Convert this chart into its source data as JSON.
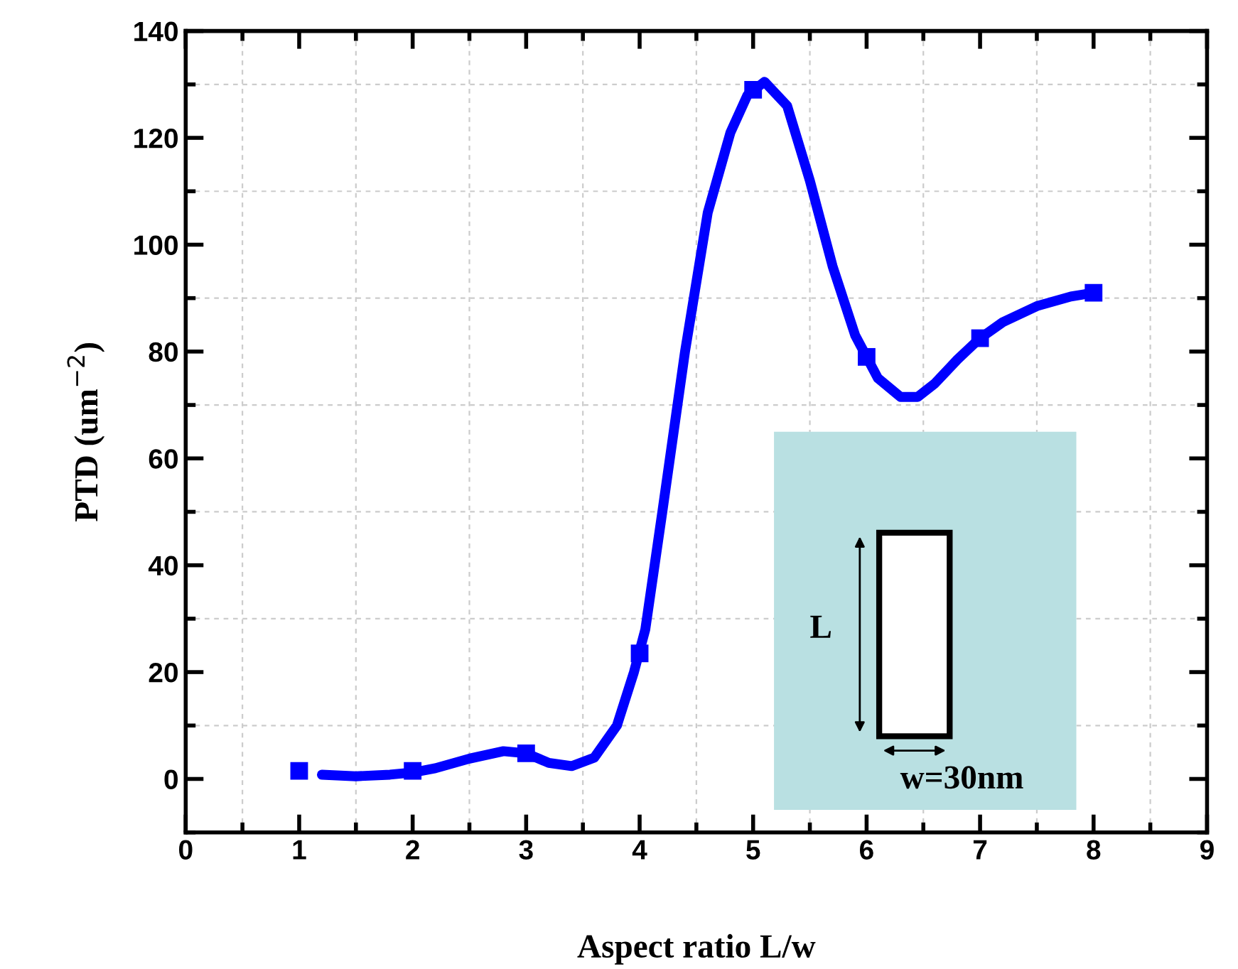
{
  "chart_data": {
    "type": "line",
    "xlabel": "Aspect ratio L/w",
    "ylabel": "PTD (um$^{−2}$)",
    "series": [
      {
        "color": "#0000ff",
        "marker": "none",
        "line_style": "solid",
        "x": [
          1.2,
          1.5,
          1.8,
          2.0,
          2.2,
          2.5,
          2.8,
          3.0,
          3.2,
          3.4,
          3.6,
          3.8,
          3.95,
          4.05,
          4.2,
          4.4,
          4.6,
          4.8,
          4.95,
          5.1,
          5.3,
          5.5,
          5.7,
          5.9,
          6.0,
          6.1,
          6.3,
          6.45,
          6.6,
          6.8,
          7.0,
          7.2,
          7.5,
          7.8,
          8.0
        ],
        "values": [
          0.8,
          0.5,
          0.8,
          1.2,
          2,
          3.8,
          5.2,
          4.8,
          3,
          2.4,
          4,
          10,
          20,
          28,
          50,
          80,
          106,
          121,
          128,
          130.5,
          126,
          112,
          96,
          83,
          79,
          75,
          71.5,
          71.5,
          74,
          78.5,
          82.5,
          85.5,
          88.5,
          90.3,
          91
        ]
      },
      {
        "type": "scatter",
        "color": "#0000ff",
        "marker": "square",
        "x": [
          1,
          2,
          3,
          4,
          5,
          6,
          7,
          8
        ],
        "values": [
          1.5,
          1.5,
          4.8,
          23.5,
          129,
          79,
          82.5,
          91
        ]
      }
    ],
    "xlim": [
      0,
      9
    ],
    "xticks": [
      0,
      1,
      2,
      3,
      4,
      5,
      6,
      7,
      8,
      9
    ],
    "ylim": [
      -10,
      140
    ],
    "yticks": [
      0,
      20,
      40,
      60,
      80,
      100,
      120,
      140
    ],
    "grid": true,
    "annotations": [
      "L",
      "w=30nm"
    ]
  }
}
